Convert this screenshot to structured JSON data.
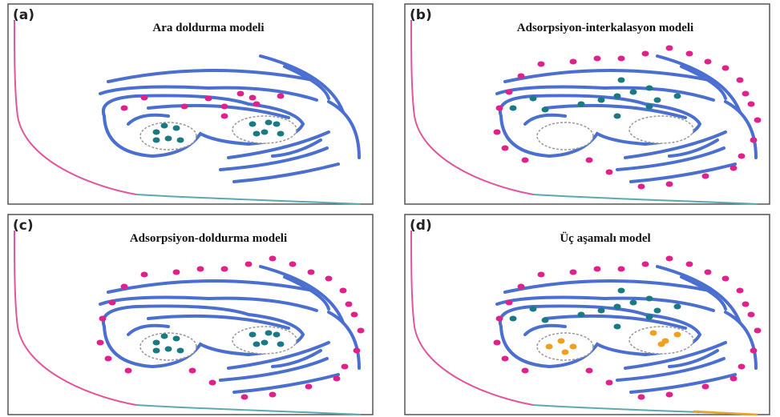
{
  "panels": [
    {
      "label": "(a)",
      "title": "Ara doldurma modeli"
    },
    {
      "label": "(b)",
      "title": "Adsorpsiyon-interkalasyon modeli"
    },
    {
      "label": "(c)",
      "title": "Adsorpsiyon-doldurma modeli"
    },
    {
      "label": "(d)",
      "title": "Üç aşamalı model"
    }
  ]
}
